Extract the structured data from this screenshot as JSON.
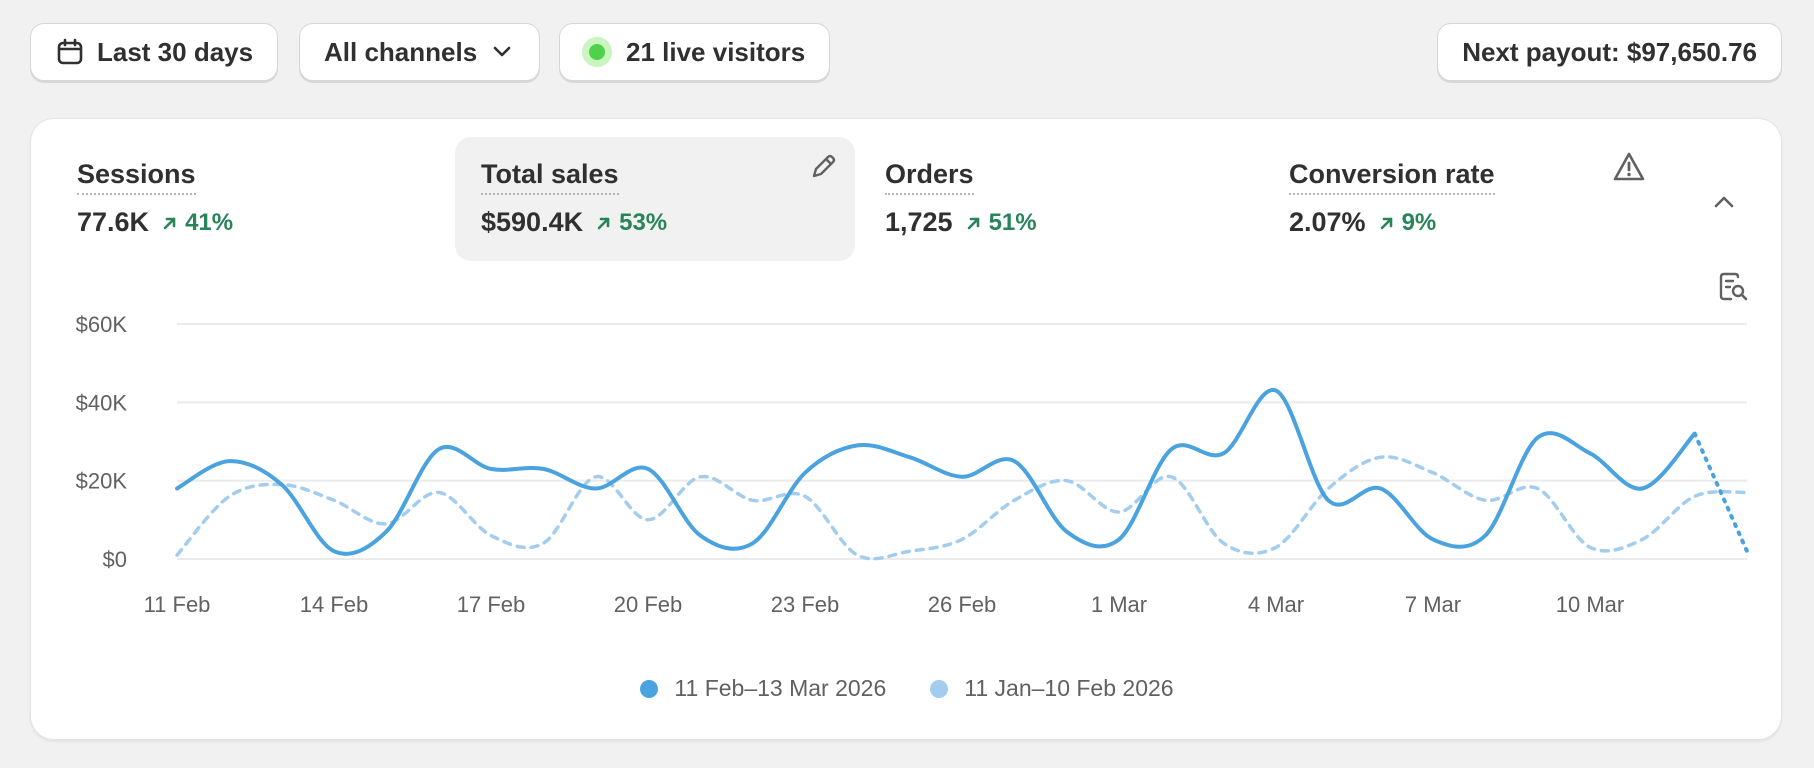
{
  "filters": {
    "date_range": "Last 30 days",
    "channel": "All channels",
    "live_visitors": "21 live visitors",
    "payout": "Next payout: $97,650.76"
  },
  "metrics": [
    {
      "label": "Sessions",
      "value": "77.6K",
      "delta": "41%"
    },
    {
      "label": "Total sales",
      "value": "$590.4K",
      "delta": "53%"
    },
    {
      "label": "Orders",
      "value": "1,725",
      "delta": "51%"
    },
    {
      "label": "Conversion rate",
      "value": "2.07%",
      "delta": "9%"
    }
  ],
  "colors": {
    "current_series": "#4aa3df",
    "previous_series": "#a3cdee",
    "positive_delta": "#29845a",
    "live_dot": "#4fd14a"
  },
  "icons": {
    "date": "calendar-icon",
    "channel": "chevron-down-icon",
    "edit": "pencil-icon",
    "warning": "warning-icon",
    "collapse": "chevron-up-icon",
    "search": "search-report-icon"
  },
  "chart_data": {
    "type": "line",
    "title": "",
    "xlabel": "",
    "ylabel": "",
    "ylim": [
      0,
      60000
    ],
    "y_ticks": [
      "$0",
      "$20K",
      "$40K",
      "$60K"
    ],
    "y_tick_values": [
      0,
      20000,
      40000,
      60000
    ],
    "x_ticks": [
      "11 Feb",
      "14 Feb",
      "17 Feb",
      "20 Feb",
      "23 Feb",
      "26 Feb",
      "1 Mar",
      "4 Mar",
      "7 Mar",
      "10 Mar"
    ],
    "x_tick_index": [
      0,
      3,
      6,
      9,
      12,
      15,
      18,
      21,
      24,
      27
    ],
    "grid": true,
    "legend_position": "bottom-center",
    "series": [
      {
        "name": "11 Feb–13 Mar 2026",
        "style": "solid",
        "values": [
          18000,
          25000,
          19000,
          2000,
          7000,
          28000,
          23000,
          23000,
          18000,
          23000,
          6000,
          4000,
          22000,
          29000,
          26000,
          21000,
          25000,
          7000,
          5000,
          28000,
          27000,
          43000,
          15000,
          18000,
          5000,
          6000,
          31000,
          27000,
          18000,
          32000,
          2000
        ],
        "projected_from_index": 29
      },
      {
        "name": "11 Jan–10 Feb 2026",
        "style": "dashed",
        "values": [
          1000,
          16000,
          19000,
          15000,
          9000,
          17000,
          6000,
          4000,
          21000,
          10000,
          21000,
          15000,
          16000,
          1000,
          2000,
          5000,
          15000,
          20000,
          12000,
          21000,
          4000,
          3000,
          18000,
          26000,
          22000,
          15000,
          18000,
          3000,
          5000,
          16000,
          17000
        ]
      }
    ]
  }
}
